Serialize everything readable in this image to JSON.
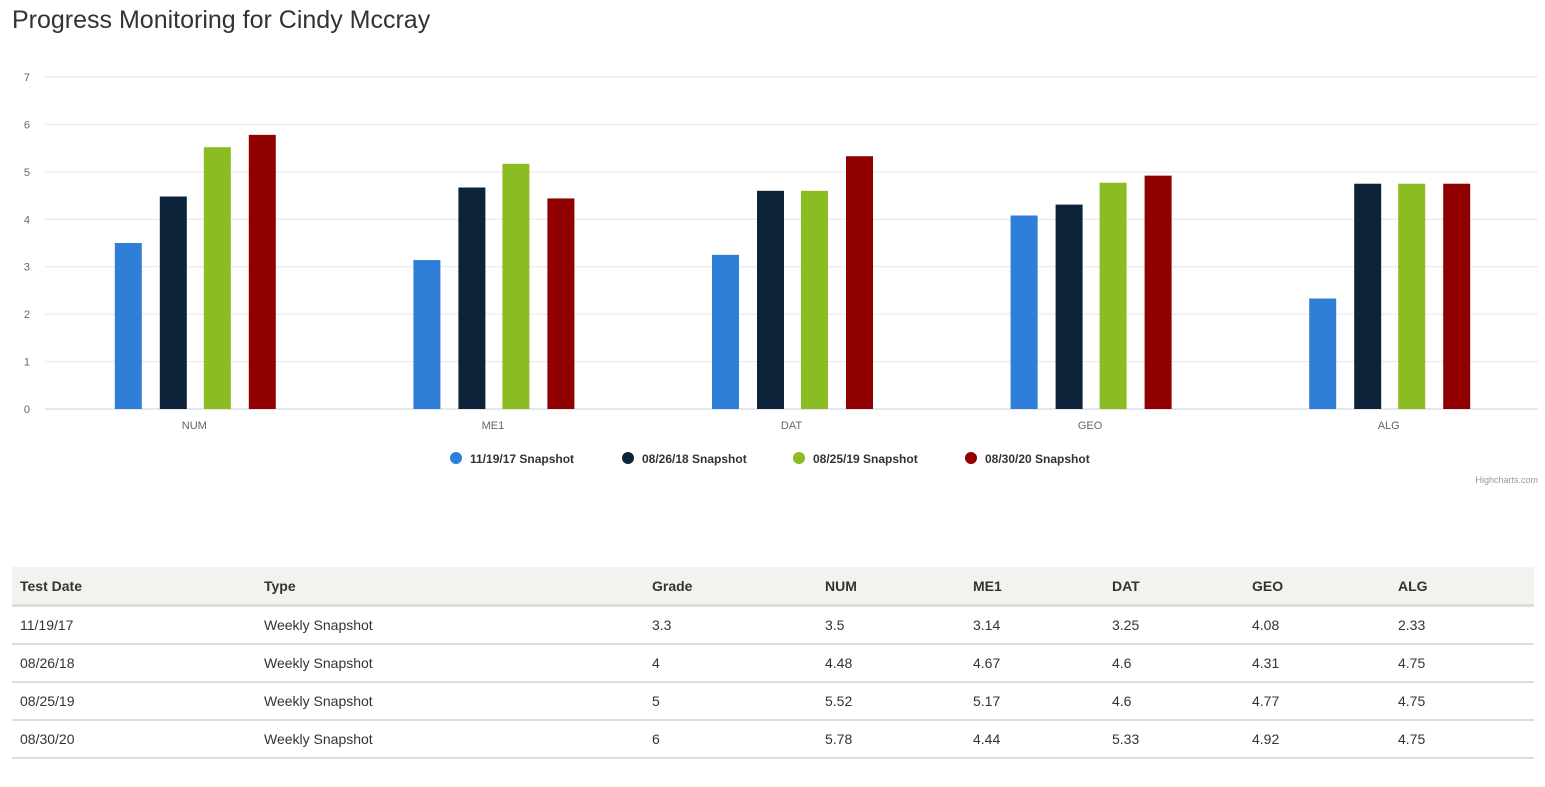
{
  "title": "Progress Monitoring for Cindy Mccray",
  "credit": "Highcharts.com",
  "chart_data": {
    "type": "bar",
    "categories": [
      "NUM",
      "ME1",
      "DAT",
      "GEO",
      "ALG"
    ],
    "ylim": [
      0,
      7
    ],
    "yticks": [
      "0",
      "1",
      "2",
      "3",
      "4",
      "5",
      "6",
      "7"
    ],
    "grid": true,
    "legend_placement": "bottom-center",
    "series": [
      {
        "name": "11/19/17 Snapshot",
        "color": "#2f7ed8",
        "values": [
          3.5,
          3.14,
          3.25,
          4.08,
          2.33
        ]
      },
      {
        "name": "08/26/18 Snapshot",
        "color": "#0d233a",
        "values": [
          4.48,
          4.67,
          4.6,
          4.31,
          4.75
        ]
      },
      {
        "name": "08/25/19 Snapshot",
        "color": "#8bbc21",
        "values": [
          5.52,
          5.17,
          4.6,
          4.77,
          4.75
        ]
      },
      {
        "name": "08/30/20 Snapshot",
        "color": "#910000",
        "values": [
          5.78,
          4.44,
          5.33,
          4.92,
          4.75
        ]
      }
    ]
  },
  "table": {
    "headers": [
      "Test Date",
      "Type",
      "Grade",
      "NUM",
      "ME1",
      "DAT",
      "GEO",
      "ALG"
    ],
    "rows": [
      [
        "11/19/17",
        "Weekly Snapshot",
        "3.3",
        "3.5",
        "3.14",
        "3.25",
        "4.08",
        "2.33"
      ],
      [
        "08/26/18",
        "Weekly Snapshot",
        "4",
        "4.48",
        "4.67",
        "4.6",
        "4.31",
        "4.75"
      ],
      [
        "08/25/19",
        "Weekly Snapshot",
        "5",
        "5.52",
        "5.17",
        "4.6",
        "4.77",
        "4.75"
      ],
      [
        "08/30/20",
        "Weekly Snapshot",
        "6",
        "5.78",
        "4.44",
        "5.33",
        "4.92",
        "4.75"
      ]
    ]
  }
}
